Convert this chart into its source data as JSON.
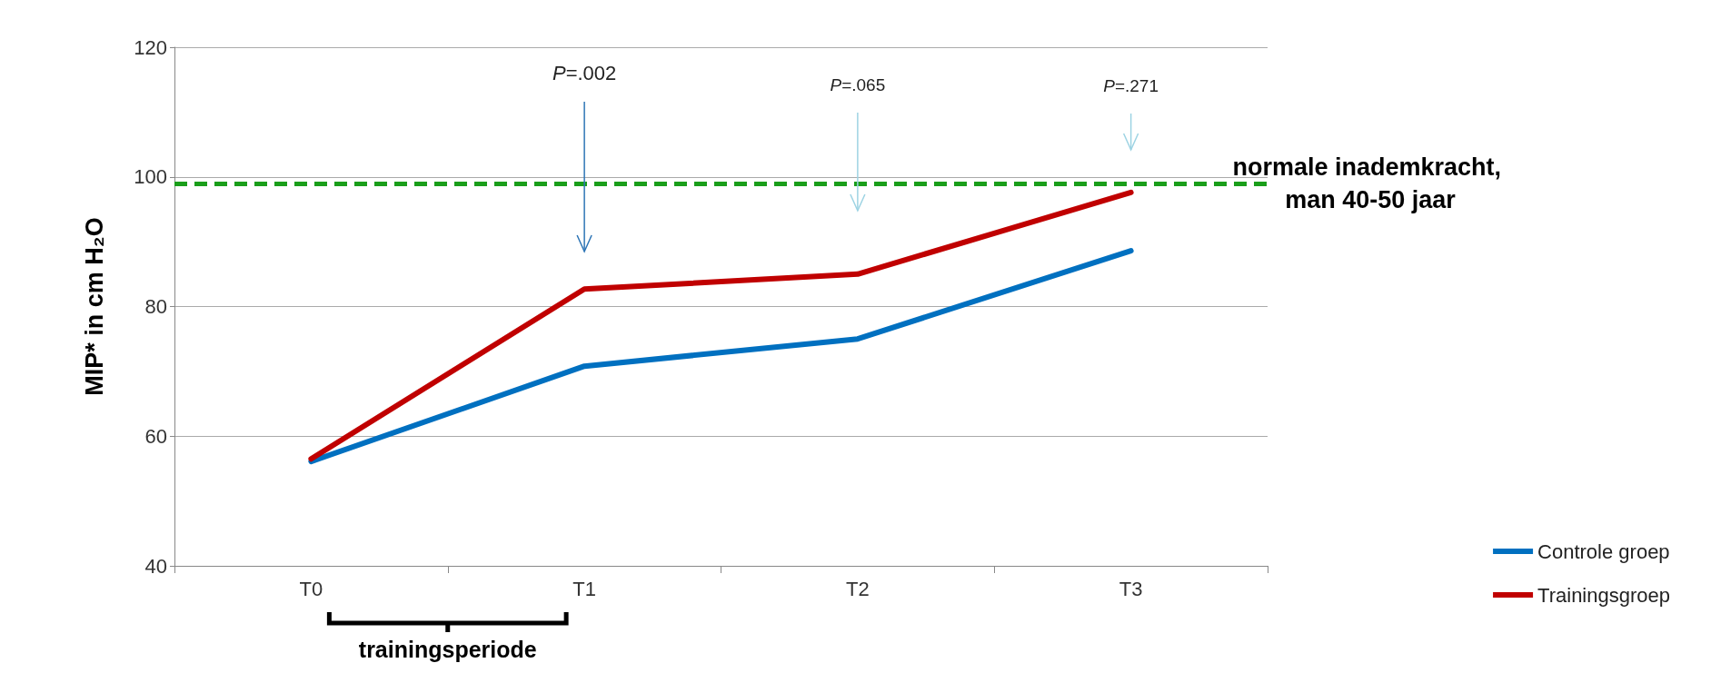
{
  "chart_data": {
    "type": "line",
    "ylabel": "MIP* in cm H₂O",
    "categories": [
      "T0",
      "T1",
      "T2",
      "T3"
    ],
    "series": [
      {
        "name": "Controle groep",
        "color": "#0070c0",
        "values": [
          56.1,
          70.8,
          75.0,
          88.6
        ]
      },
      {
        "name": "Trainingsgroep",
        "color": "#c00000",
        "values": [
          56.5,
          82.7,
          85.0,
          97.6
        ]
      }
    ],
    "ylim": [
      40,
      120
    ],
    "yticks": [
      40,
      60,
      80,
      100,
      120
    ],
    "grid": "y",
    "legend": "bottom right",
    "marker": "none",
    "line_style": "solid",
    "ref_lines": [
      {
        "axis": "y",
        "value": 99,
        "label": "normale inademkracht, man 40-50 jaar",
        "color": "#1a9e1a",
        "line_style": "dashed"
      }
    ],
    "annotations": [
      "P=.002",
      "P=.065",
      "P=.271",
      "trainingsperiode"
    ]
  }
}
